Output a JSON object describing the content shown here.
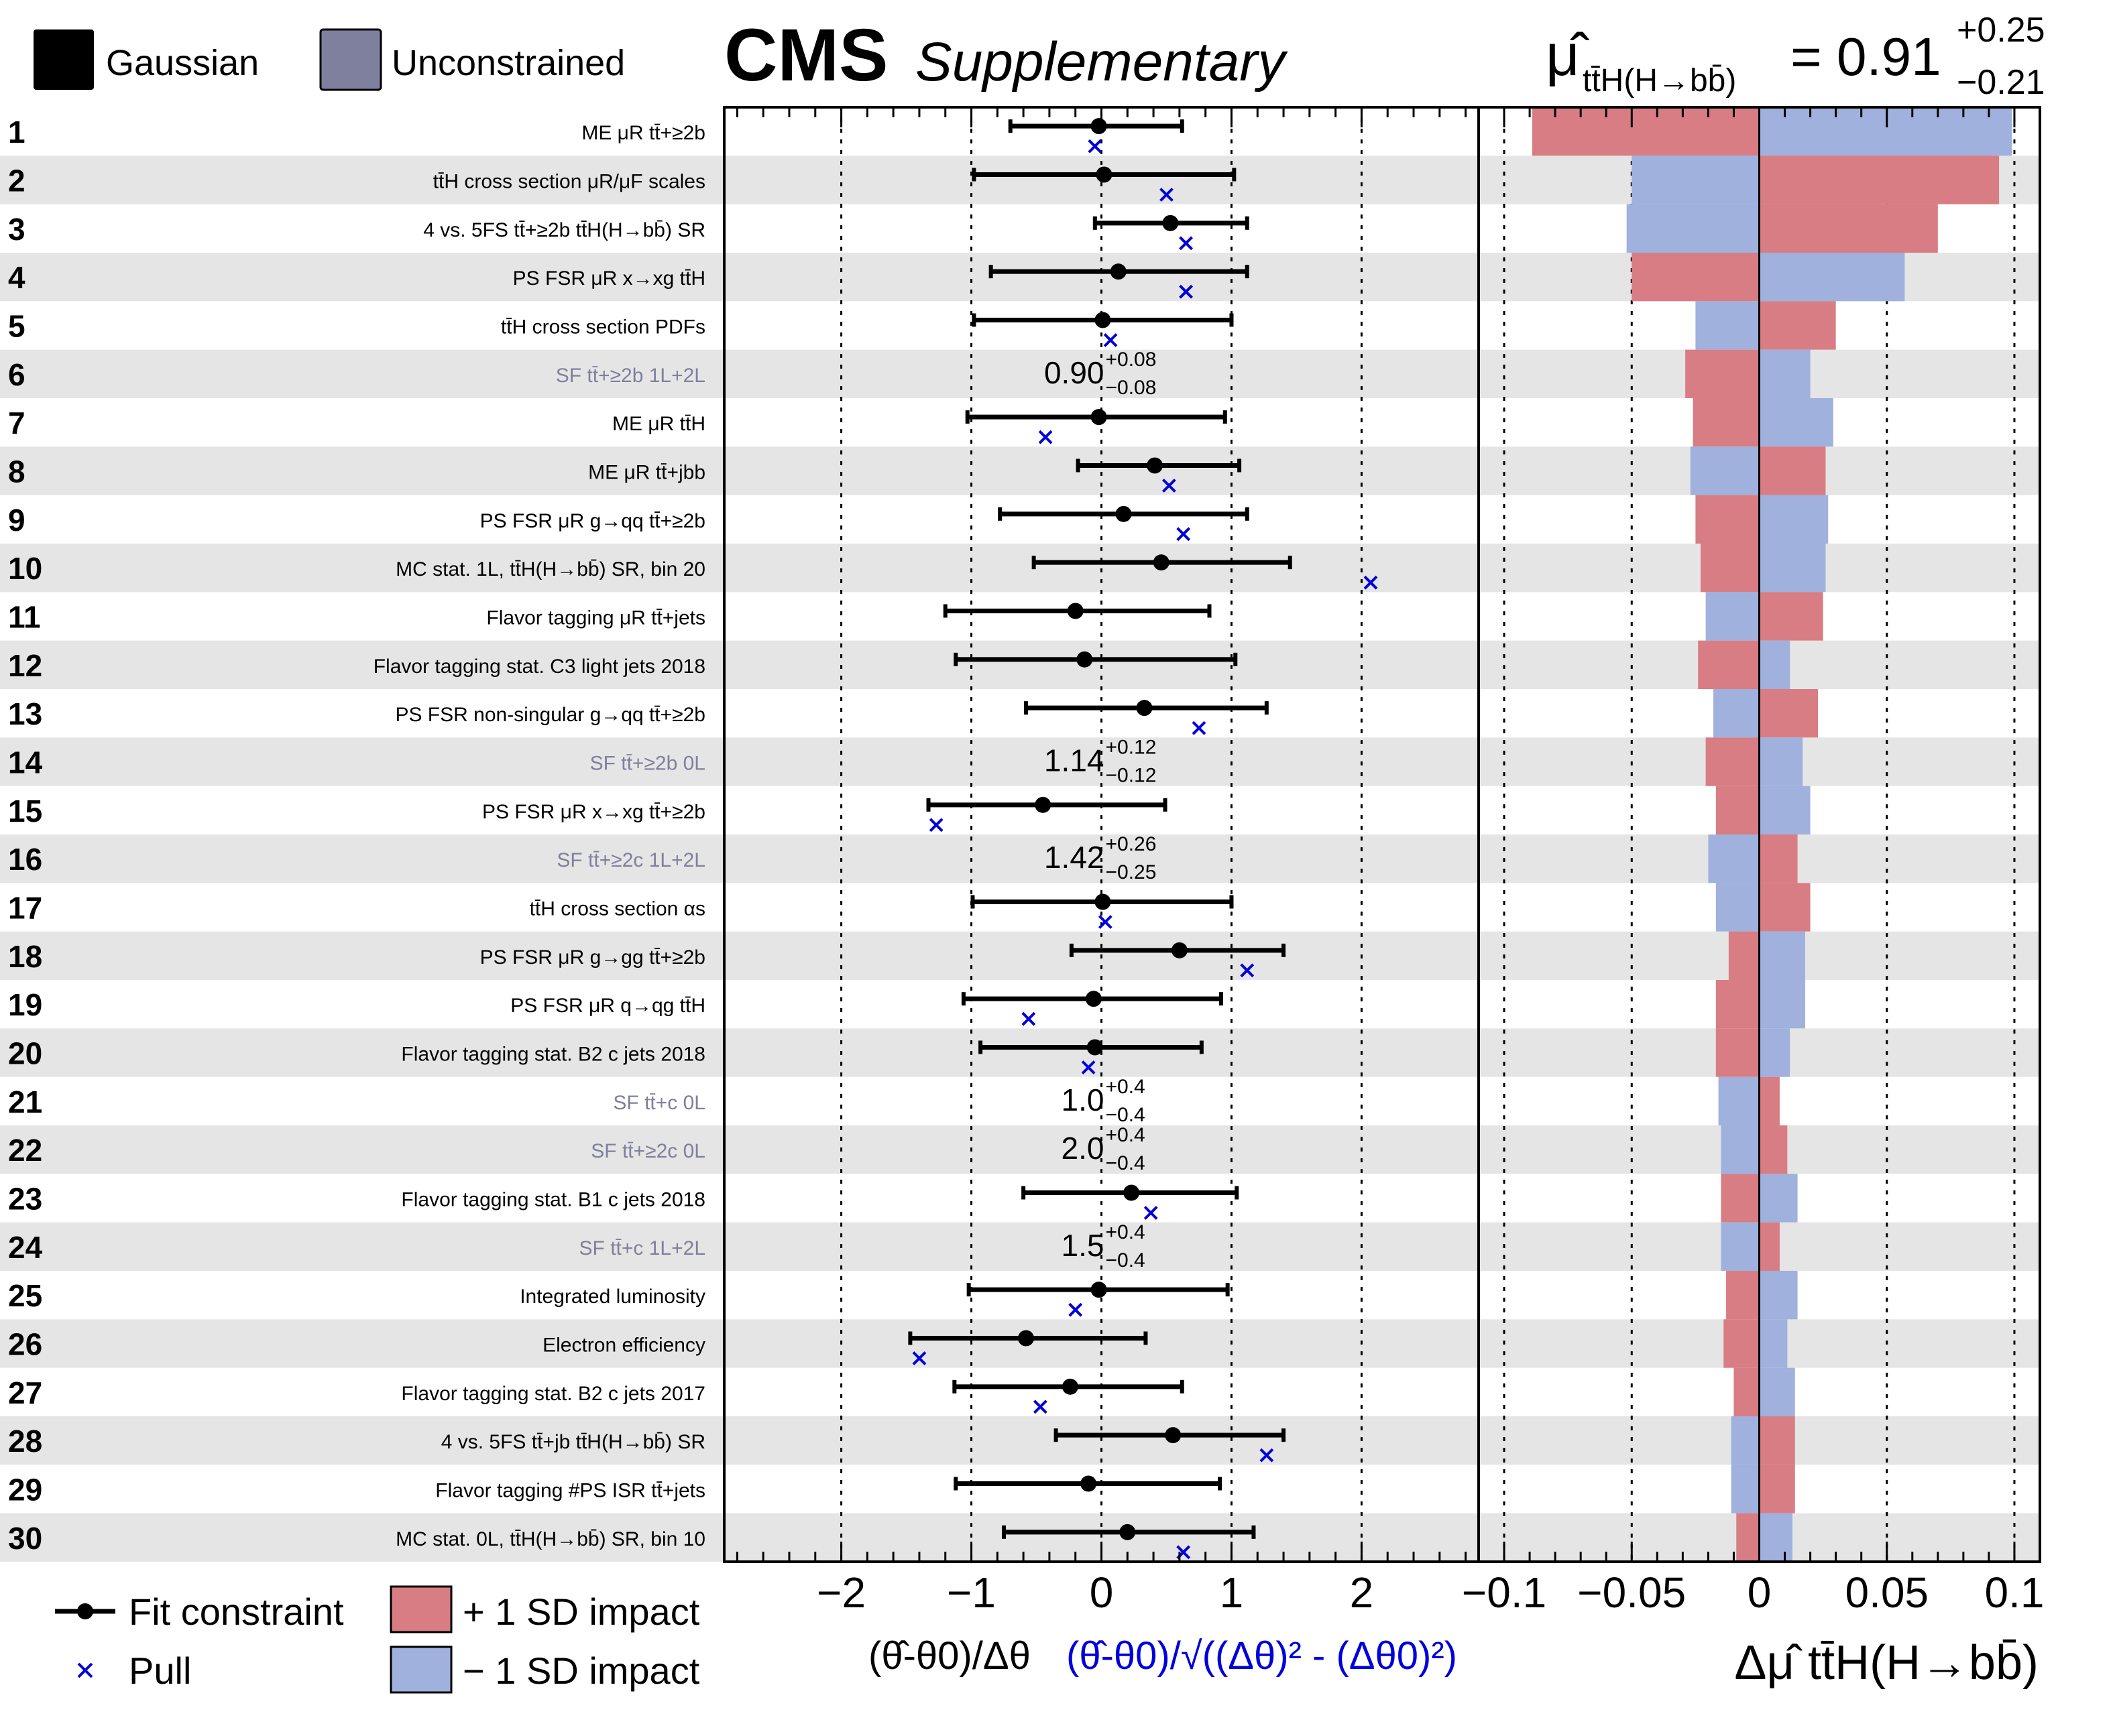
{
  "chart_data": {
    "type": "impact",
    "title_bold": "CMS",
    "title_italic": "Supplementary",
    "poi": {
      "symbol": "μ̂",
      "subscript": "tt̄H(H→bb̄)",
      "value": "0.91",
      "err_up": "+0.25",
      "err_down": "−0.21"
    },
    "legend_top": [
      {
        "label": "Gaussian",
        "color": "#000000"
      },
      {
        "label": "Unconstrained",
        "color": "#7f7f9e"
      }
    ],
    "legend_bottom": {
      "fit_constraint": "Fit constraint",
      "pull": "Pull",
      "plus_impact": "+ 1 SD impact",
      "minus_impact": "− 1 SD impact"
    },
    "colors": {
      "plus_impact": "#d87d84",
      "minus_impact": "#9fb1dc",
      "pull": "#0000dd",
      "unconstrained_text": "#7f7f9e",
      "band": "#e5e5e5"
    },
    "pull_axis": {
      "range": [
        -2.9,
        2.9
      ],
      "ticks": [
        -2,
        -1,
        0,
        1,
        2
      ],
      "tick_labels": [
        "−2",
        "−1",
        "0",
        "1",
        "2"
      ],
      "xlabel_black": "(θ̂-θ0)/Δθ",
      "xlabel_blue": "(θ̂-θ0)/√((Δθ)² - (Δθ0)²)"
    },
    "impact_axis": {
      "range": [
        -0.11,
        0.11
      ],
      "ticks": [
        -0.1,
        -0.05,
        0,
        0.05,
        0.1
      ],
      "tick_labels": [
        "−0.1",
        "−0.05",
        "0",
        "0.05",
        "0.1"
      ],
      "xlabel": "Δμ̂ tt̄H(H→bb̄)"
    },
    "parameters": [
      {
        "rank": "1",
        "label": "ME μR tt̄+≥2b",
        "unconstrained": false,
        "fit": -0.02,
        "lo": -0.7,
        "hi": 0.62,
        "pull": -0.05,
        "plus": -0.089,
        "minus": 0.099
      },
      {
        "rank": "2",
        "label": "tt̄H cross section μR/μF scales",
        "unconstrained": false,
        "fit": 0.02,
        "lo": -0.98,
        "hi": 1.02,
        "pull": 0.5,
        "plus": 0.094,
        "minus": -0.05
      },
      {
        "rank": "3",
        "label": "4 vs. 5FS tt̄+≥2b tt̄H(H→bb̄) SR",
        "unconstrained": false,
        "fit": 0.53,
        "lo": -0.05,
        "hi": 1.12,
        "pull": 0.65,
        "plus": 0.07,
        "minus": -0.052
      },
      {
        "rank": "4",
        "label": "PS FSR μR x→xg tt̄H",
        "unconstrained": false,
        "fit": 0.13,
        "lo": -0.85,
        "hi": 1.12,
        "pull": 0.65,
        "plus": -0.05,
        "minus": 0.057
      },
      {
        "rank": "5",
        "label": "tt̄H cross section PDFs",
        "unconstrained": false,
        "fit": 0.01,
        "lo": -0.98,
        "hi": 1.0,
        "pull": 0.07,
        "plus": 0.03,
        "minus": -0.025
      },
      {
        "rank": "6",
        "label": "SF tt̄+≥2b 1L+2L",
        "unconstrained": true,
        "value": "0.90",
        "up": "+0.08",
        "down": "−0.08",
        "plus": -0.029,
        "minus": 0.02
      },
      {
        "rank": "7",
        "label": "ME μR tt̄H",
        "unconstrained": false,
        "fit": -0.02,
        "lo": -1.03,
        "hi": 0.95,
        "pull": -0.43,
        "plus": -0.026,
        "minus": 0.029
      },
      {
        "rank": "8",
        "label": "ME μR tt̄+jbb",
        "unconstrained": false,
        "fit": 0.41,
        "lo": -0.18,
        "hi": 1.06,
        "pull": 0.52,
        "plus": 0.026,
        "minus": -0.027
      },
      {
        "rank": "9",
        "label": "PS FSR μR g→qq tt̄+≥2b",
        "unconstrained": false,
        "fit": 0.17,
        "lo": -0.78,
        "hi": 1.12,
        "pull": 0.63,
        "plus": -0.025,
        "minus": 0.027
      },
      {
        "rank": "10",
        "label": "MC stat. 1L, tt̄H(H→bb̄) SR, bin 20",
        "unconstrained": false,
        "fit": 0.46,
        "lo": -0.52,
        "hi": 1.45,
        "pull": 2.07,
        "plus": -0.023,
        "minus": 0.026
      },
      {
        "rank": "11",
        "label": "Flavor tagging μR tt̄+jets",
        "unconstrained": false,
        "fit": -0.2,
        "lo": -1.2,
        "hi": 0.83,
        "pull": null,
        "plus": 0.025,
        "minus": -0.021
      },
      {
        "rank": "12",
        "label": "Flavor tagging stat. C3 light jets 2018",
        "unconstrained": false,
        "fit": -0.13,
        "lo": -1.12,
        "hi": 1.03,
        "pull": null,
        "plus": -0.024,
        "minus": 0.012
      },
      {
        "rank": "13",
        "label": "PS FSR non-singular g→qq tt̄+≥2b",
        "unconstrained": false,
        "fit": 0.33,
        "lo": -0.58,
        "hi": 1.27,
        "pull": 0.75,
        "plus": 0.023,
        "minus": -0.018
      },
      {
        "rank": "14",
        "label": "SF tt̄+≥2b 0L",
        "unconstrained": true,
        "value": "1.14",
        "up": "+0.12",
        "down": "−0.12",
        "plus": -0.021,
        "minus": 0.017
      },
      {
        "rank": "15",
        "label": "PS FSR μR x→xg tt̄+≥2b",
        "unconstrained": false,
        "fit": -0.45,
        "lo": -1.33,
        "hi": 0.49,
        "pull": -1.27,
        "plus": -0.017,
        "minus": 0.02
      },
      {
        "rank": "16",
        "label": "SF tt̄+≥2c 1L+2L",
        "unconstrained": true,
        "value": "1.42",
        "up": "+0.26",
        "down": "−0.25",
        "plus": 0.015,
        "minus": -0.02
      },
      {
        "rank": "17",
        "label": "tt̄H cross section αs",
        "unconstrained": false,
        "fit": 0.01,
        "lo": -0.99,
        "hi": 1.0,
        "pull": 0.03,
        "plus": 0.02,
        "minus": -0.017
      },
      {
        "rank": "18",
        "label": "PS FSR μR g→gg tt̄+≥2b",
        "unconstrained": false,
        "fit": 0.6,
        "lo": -0.23,
        "hi": 1.4,
        "pull": 1.12,
        "plus": -0.012,
        "minus": 0.018
      },
      {
        "rank": "19",
        "label": "PS FSR μR q→qg tt̄H",
        "unconstrained": false,
        "fit": -0.06,
        "lo": -1.06,
        "hi": 0.92,
        "pull": -0.56,
        "plus": -0.017,
        "minus": 0.018
      },
      {
        "rank": "20",
        "label": "Flavor tagging stat. B2 c jets 2018",
        "unconstrained": false,
        "fit": -0.05,
        "lo": -0.93,
        "hi": 0.77,
        "pull": -0.1,
        "plus": -0.017,
        "minus": 0.012
      },
      {
        "rank": "21",
        "label": "SF tt̄+c 0L",
        "unconstrained": true,
        "value": "1.0",
        "up": "+0.4",
        "down": "−0.4",
        "plus": 0.008,
        "minus": -0.016
      },
      {
        "rank": "22",
        "label": "SF tt̄+≥2c 0L",
        "unconstrained": true,
        "value": "2.0",
        "up": "+0.4",
        "down": "−0.4",
        "plus": 0.011,
        "minus": -0.015
      },
      {
        "rank": "23",
        "label": "Flavor tagging stat. B1 c jets 2018",
        "unconstrained": false,
        "fit": 0.23,
        "lo": -0.6,
        "hi": 1.04,
        "pull": 0.38,
        "plus": -0.015,
        "minus": 0.015
      },
      {
        "rank": "24",
        "label": "SF tt̄+c 1L+2L",
        "unconstrained": true,
        "value": "1.5",
        "up": "+0.4",
        "down": "−0.4",
        "plus": 0.008,
        "minus": -0.015
      },
      {
        "rank": "25",
        "label": "Integrated luminosity",
        "unconstrained": false,
        "fit": -0.02,
        "lo": -1.02,
        "hi": 0.97,
        "pull": -0.2,
        "plus": -0.013,
        "minus": 0.015
      },
      {
        "rank": "26",
        "label": "Electron efficiency",
        "unconstrained": false,
        "fit": -0.58,
        "lo": -1.47,
        "hi": 0.34,
        "pull": -1.4,
        "plus": -0.014,
        "minus": 0.011
      },
      {
        "rank": "27",
        "label": "Flavor tagging stat. B2 c jets 2017",
        "unconstrained": false,
        "fit": -0.24,
        "lo": -1.13,
        "hi": 0.62,
        "pull": -0.47,
        "plus": -0.01,
        "minus": 0.014
      },
      {
        "rank": "28",
        "label": "4 vs. 5FS tt̄+jb tt̄H(H→bb̄) SR",
        "unconstrained": false,
        "fit": 0.55,
        "lo": -0.35,
        "hi": 1.4,
        "pull": 1.27,
        "plus": 0.014,
        "minus": -0.011
      },
      {
        "rank": "29",
        "label": "Flavor tagging #PS ISR tt̄+jets",
        "unconstrained": false,
        "fit": -0.1,
        "lo": -1.12,
        "hi": 0.91,
        "pull": null,
        "plus": 0.014,
        "minus": -0.011
      },
      {
        "rank": "30",
        "label": "MC stat. 0L, tt̄H(H→bb̄) SR, bin 10",
        "unconstrained": false,
        "fit": 0.2,
        "lo": -0.75,
        "hi": 1.17,
        "pull": 0.63,
        "plus": -0.009,
        "minus": 0.013
      }
    ]
  }
}
